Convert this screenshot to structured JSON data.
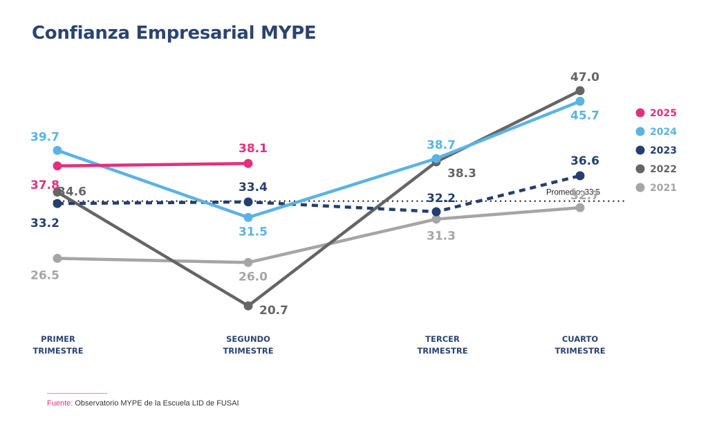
{
  "chart_data": {
    "type": "line",
    "title": "Confianza Empresarial MYPE",
    "categories": [
      "PRIMER\nTRIMESTRE",
      "SEGUNDO\nTRIMESTRE",
      "TERCER\nTRIMESTRE",
      "CUARTO\nTRIMESTRE"
    ],
    "category_lines": [
      [
        "PRIMER",
        "TRIMESTRE"
      ],
      [
        "SEGUNDO",
        "TRIMESTRE"
      ],
      [
        "TERCER",
        "TRIMESTRE"
      ],
      [
        "CUARTO",
        "TRIMESTRE"
      ]
    ],
    "xlabel": "",
    "ylabel": "",
    "ylim": [
      20.7,
      47.0
    ],
    "grid": false,
    "legend_position": "right",
    "series": [
      {
        "name": "2025",
        "color": "#e0317e",
        "dashed": false,
        "values": [
          37.8,
          38.1,
          null,
          null
        ],
        "labels": [
          "37.8",
          "38.1",
          null,
          null
        ]
      },
      {
        "name": "2024",
        "color": "#5bb3e3",
        "dashed": false,
        "values": [
          39.7,
          31.5,
          38.7,
          45.7
        ],
        "labels": [
          "39.7",
          "31.5",
          "38.7",
          "45.7"
        ]
      },
      {
        "name": "2023",
        "color": "#243f6e",
        "dashed": true,
        "values": [
          33.2,
          33.4,
          32.2,
          36.6
        ],
        "labels": [
          "33.2",
          "33.4",
          "32.2",
          "36.6"
        ]
      },
      {
        "name": "2022",
        "color": "#656565",
        "dashed": false,
        "values": [
          34.6,
          20.7,
          38.3,
          47.0
        ],
        "labels": [
          "34.6",
          "20.7",
          "38.3",
          "47.0"
        ]
      },
      {
        "name": "2021",
        "color": "#a5a5a5",
        "dashed": false,
        "values": [
          26.5,
          26.0,
          31.3,
          32.7
        ],
        "labels": [
          "26.5",
          "26.0",
          "31.3",
          "32.7"
        ]
      }
    ],
    "reference_line": {
      "label": "Promedio: 33.5",
      "value": 33.5
    },
    "annotations": []
  },
  "footer": {
    "source_label": "Fuente:",
    "source_text": " Observatorio MYPE de la Escuela LID de FUSAI"
  }
}
